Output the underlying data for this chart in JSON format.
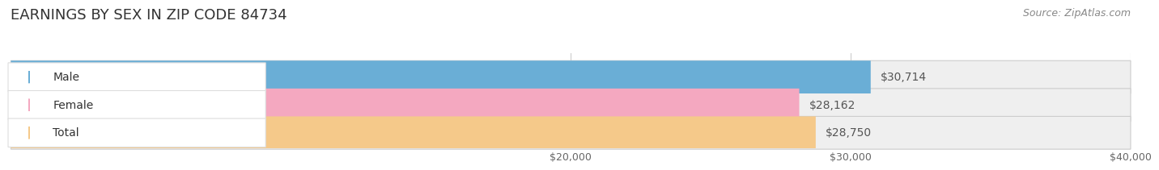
{
  "title": "EARNINGS BY SEX IN ZIP CODE 84734",
  "source": "Source: ZipAtlas.com",
  "categories": [
    "Male",
    "Female",
    "Total"
  ],
  "values": [
    30714,
    28162,
    28750
  ],
  "bar_colors": [
    "#6aaed6",
    "#f4a8c0",
    "#f5c98a"
  ],
  "label_colors": [
    "#6aaed6",
    "#f4a8c0",
    "#f5c98a"
  ],
  "bar_bg_color": "#efefef",
  "xlim": [
    0,
    40000
  ],
  "xticks": [
    20000,
    30000,
    40000
  ],
  "xtick_labels": [
    "$20,000",
    "$30,000",
    "$40,000"
  ],
  "value_labels": [
    "$30,714",
    "$28,162",
    "$28,750"
  ],
  "title_fontsize": 13,
  "source_fontsize": 9,
  "label_fontsize": 10,
  "value_fontsize": 10,
  "tick_fontsize": 9
}
